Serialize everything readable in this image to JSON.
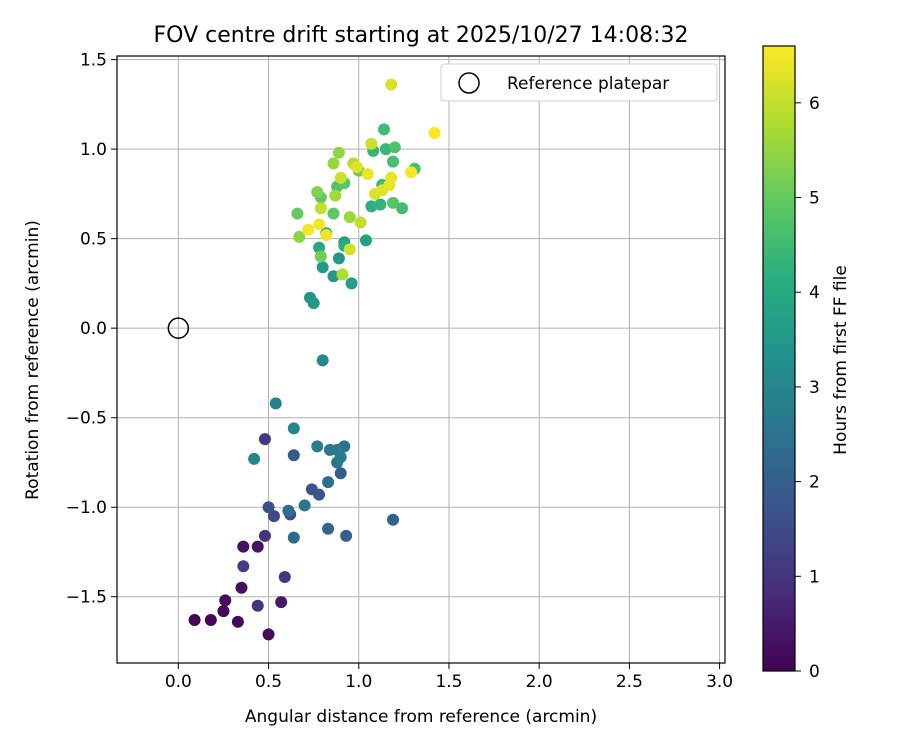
{
  "chart_data": {
    "type": "scatter",
    "title": "FOV centre drift starting at 2025/10/27 14:08:32",
    "xlabel": "Angular distance from reference (arcmin)",
    "ylabel": "Rotation from reference (arcmin)",
    "xlim": [
      -0.34,
      3.03
    ],
    "ylim": [
      -1.87,
      1.52
    ],
    "xticks": [
      0.0,
      0.5,
      1.0,
      1.5,
      2.0,
      2.5,
      3.0
    ],
    "xtick_labels": [
      "0.0",
      "0.5",
      "1.0",
      "1.5",
      "2.0",
      "2.5",
      "3.0"
    ],
    "yticks": [
      -1.5,
      -1.0,
      -0.5,
      0.0,
      0.5,
      1.0,
      1.5
    ],
    "ytick_labels": [
      "−1.5",
      "−1.0",
      "−0.5",
      "0.0",
      "0.5",
      "1.0",
      "1.5"
    ],
    "grid": true,
    "colorbar": {
      "label": "Hours from first FF file",
      "min": 0,
      "max": 6.6,
      "ticks": [
        0,
        1,
        2,
        3,
        4,
        5,
        6
      ],
      "tick_labels": [
        "0",
        "1",
        "2",
        "3",
        "4",
        "5",
        "6"
      ],
      "colormap": "viridis"
    },
    "reference": {
      "label": "Reference platepar",
      "x": 0.0,
      "y": 0.0
    },
    "legend": {
      "position": "top-right",
      "entries": [
        "Reference platepar"
      ]
    },
    "series": [
      {
        "name": "FOV centre drift",
        "points": [
          {
            "x": 0.09,
            "y": -1.63,
            "t": 0.05
          },
          {
            "x": 0.18,
            "y": -1.63,
            "t": 0.1
          },
          {
            "x": 0.25,
            "y": -1.58,
            "t": 0.12
          },
          {
            "x": 0.33,
            "y": -1.64,
            "t": 0.15
          },
          {
            "x": 0.5,
            "y": -1.71,
            "t": 0.2
          },
          {
            "x": 0.26,
            "y": -1.52,
            "t": 0.22
          },
          {
            "x": 0.35,
            "y": -1.45,
            "t": 0.28
          },
          {
            "x": 0.36,
            "y": -1.22,
            "t": 0.3
          },
          {
            "x": 0.44,
            "y": -1.22,
            "t": 0.33
          },
          {
            "x": 0.57,
            "y": -1.53,
            "t": 0.45
          },
          {
            "x": 0.48,
            "y": -1.16,
            "t": 0.95
          },
          {
            "x": 0.44,
            "y": -1.55,
            "t": 1.0
          },
          {
            "x": 0.59,
            "y": -1.39,
            "t": 1.05
          },
          {
            "x": 0.36,
            "y": -1.33,
            "t": 1.15
          },
          {
            "x": 0.48,
            "y": -0.62,
            "t": 1.1
          },
          {
            "x": 0.53,
            "y": -1.05,
            "t": 1.45
          },
          {
            "x": 0.5,
            "y": -1.0,
            "t": 1.6
          },
          {
            "x": 0.62,
            "y": -1.04,
            "t": 1.5
          },
          {
            "x": 0.64,
            "y": -0.71,
            "t": 1.85
          },
          {
            "x": 0.74,
            "y": -0.9,
            "t": 1.7
          },
          {
            "x": 0.78,
            "y": -0.93,
            "t": 1.75
          },
          {
            "x": 0.9,
            "y": -0.81,
            "t": 1.9
          },
          {
            "x": 0.93,
            "y": -1.16,
            "t": 2.0
          },
          {
            "x": 1.19,
            "y": -1.07,
            "t": 2.1
          },
          {
            "x": 0.83,
            "y": -1.12,
            "t": 2.2
          },
          {
            "x": 0.64,
            "y": -1.17,
            "t": 2.3
          },
          {
            "x": 0.61,
            "y": -1.02,
            "t": 2.35
          },
          {
            "x": 0.83,
            "y": -0.86,
            "t": 2.4
          },
          {
            "x": 0.88,
            "y": -0.75,
            "t": 2.5
          },
          {
            "x": 0.7,
            "y": -0.99,
            "t": 2.55
          },
          {
            "x": 0.92,
            "y": -0.66,
            "t": 2.45
          },
          {
            "x": 0.84,
            "y": -0.68,
            "t": 2.6
          },
          {
            "x": 0.88,
            "y": -0.68,
            "t": 2.65
          },
          {
            "x": 0.9,
            "y": -0.72,
            "t": 2.75
          },
          {
            "x": 0.77,
            "y": -0.66,
            "t": 2.8
          },
          {
            "x": 0.54,
            "y": -0.42,
            "t": 2.9
          },
          {
            "x": 0.64,
            "y": -0.56,
            "t": 2.95
          },
          {
            "x": 0.42,
            "y": -0.73,
            "t": 3.0
          },
          {
            "x": 0.8,
            "y": -0.18,
            "t": 3.1
          },
          {
            "x": 0.73,
            "y": 0.17,
            "t": 3.4
          },
          {
            "x": 0.75,
            "y": 0.14,
            "t": 3.5
          },
          {
            "x": 0.96,
            "y": 0.25,
            "t": 3.6
          },
          {
            "x": 0.8,
            "y": 0.34,
            "t": 3.55
          },
          {
            "x": 0.86,
            "y": 0.29,
            "t": 3.45
          },
          {
            "x": 0.89,
            "y": 0.39,
            "t": 3.5
          },
          {
            "x": 0.92,
            "y": 0.48,
            "t": 3.7
          },
          {
            "x": 1.04,
            "y": 0.49,
            "t": 3.75
          },
          {
            "x": 0.78,
            "y": 0.45,
            "t": 3.9
          },
          {
            "x": 0.82,
            "y": 0.53,
            "t": 4.0
          },
          {
            "x": 0.92,
            "y": 0.46,
            "t": 4.1
          },
          {
            "x": 1.07,
            "y": 0.68,
            "t": 4.2
          },
          {
            "x": 1.12,
            "y": 0.69,
            "t": 4.3
          },
          {
            "x": 1.08,
            "y": 0.99,
            "t": 4.35
          },
          {
            "x": 1.13,
            "y": 0.8,
            "t": 4.45
          },
          {
            "x": 1.15,
            "y": 1.0,
            "t": 4.4
          },
          {
            "x": 1.14,
            "y": 1.11,
            "t": 4.5
          },
          {
            "x": 1.19,
            "y": 0.93,
            "t": 4.6
          },
          {
            "x": 1.24,
            "y": 0.67,
            "t": 4.55
          },
          {
            "x": 1.31,
            "y": 0.89,
            "t": 4.65
          },
          {
            "x": 1.2,
            "y": 1.01,
            "t": 4.7
          },
          {
            "x": 1.19,
            "y": 0.7,
            "t": 4.8
          },
          {
            "x": 0.88,
            "y": 0.79,
            "t": 4.75
          },
          {
            "x": 0.92,
            "y": 0.81,
            "t": 4.85
          },
          {
            "x": 0.86,
            "y": 0.64,
            "t": 4.9
          },
          {
            "x": 0.79,
            "y": 0.73,
            "t": 4.95
          },
          {
            "x": 0.66,
            "y": 0.64,
            "t": 5.0
          },
          {
            "x": 1.0,
            "y": 0.88,
            "t": 5.1
          },
          {
            "x": 0.79,
            "y": 0.4,
            "t": 5.15
          },
          {
            "x": 0.77,
            "y": 0.76,
            "t": 5.3
          },
          {
            "x": 0.67,
            "y": 0.51,
            "t": 5.45
          },
          {
            "x": 0.89,
            "y": 0.98,
            "t": 5.5
          },
          {
            "x": 0.86,
            "y": 0.92,
            "t": 5.55
          },
          {
            "x": 0.95,
            "y": 0.62,
            "t": 5.6
          },
          {
            "x": 0.87,
            "y": 0.74,
            "t": 5.65
          },
          {
            "x": 0.91,
            "y": 0.3,
            "t": 5.8
          },
          {
            "x": 0.97,
            "y": 0.92,
            "t": 5.9
          },
          {
            "x": 1.01,
            "y": 0.59,
            "t": 6.0
          },
          {
            "x": 1.07,
            "y": 1.03,
            "t": 6.05
          },
          {
            "x": 0.79,
            "y": 0.67,
            "t": 6.0
          },
          {
            "x": 0.95,
            "y": 0.44,
            "t": 6.15
          },
          {
            "x": 0.9,
            "y": 0.84,
            "t": 6.1
          },
          {
            "x": 1.18,
            "y": 1.36,
            "t": 6.2
          },
          {
            "x": 1.09,
            "y": 0.75,
            "t": 6.25
          },
          {
            "x": 1.13,
            "y": 0.77,
            "t": 6.3
          },
          {
            "x": 1.17,
            "y": 0.8,
            "t": 6.35
          },
          {
            "x": 1.18,
            "y": 0.84,
            "t": 6.4
          },
          {
            "x": 0.99,
            "y": 0.9,
            "t": 6.3
          },
          {
            "x": 1.05,
            "y": 0.86,
            "t": 6.45
          },
          {
            "x": 0.82,
            "y": 0.52,
            "t": 6.45
          },
          {
            "x": 0.72,
            "y": 0.55,
            "t": 6.5
          },
          {
            "x": 0.78,
            "y": 0.58,
            "t": 6.5
          },
          {
            "x": 1.29,
            "y": 0.87,
            "t": 6.55
          },
          {
            "x": 1.42,
            "y": 1.09,
            "t": 6.6
          }
        ]
      }
    ]
  }
}
